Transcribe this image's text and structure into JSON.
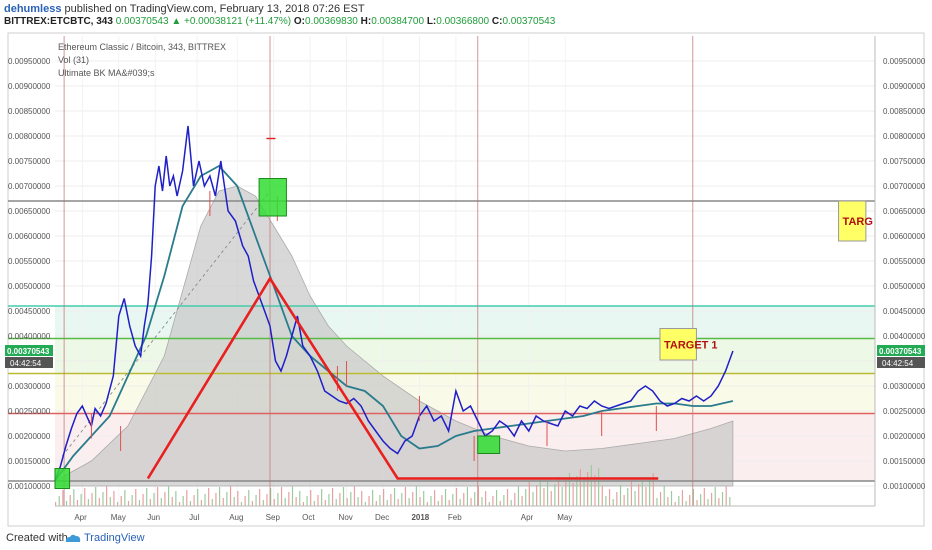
{
  "header": {
    "author": "dehumless",
    "published": "published on TradingView.com, February 13, 2018 07:26 EST",
    "symbol": "BITTREX:ETCBTC, 343",
    "last": "0.00370543",
    "change": "+0.00038121 (+11.47%)",
    "ohlc": [
      {
        "label": "O:",
        "value": "0.00369830"
      },
      {
        "label": "H:",
        "value": "0.00384700"
      },
      {
        "label": "L:",
        "value": "0.00366800"
      },
      {
        "label": "C:",
        "value": "0.00370543"
      }
    ]
  },
  "footer": {
    "created": "Created with",
    "brand": "TradingView"
  },
  "colors": {
    "price": "#1f1fc8",
    "ma": "#2a7b8c",
    "pattern": "#e82020",
    "green_box": "#33dd33",
    "target_box": "#ffff66",
    "target_text": "#b01010",
    "last_badge": "#22aa55"
  },
  "chart_data": {
    "type": "line",
    "title": "Ethereum Classic / Bitcoin, 343, BITTREX",
    "legend": [
      "Vol (31)",
      "Ultimate BK MA&#039;s"
    ],
    "x_ticks": [
      "Apr",
      "May",
      "Jun",
      "Jul",
      "Aug",
      "Sep",
      "Oct",
      "Nov",
      "Dec",
      "2018",
      "Feb",
      "Apr",
      "May"
    ],
    "y_ticks": [
      "0.00950000",
      "0.00900000",
      "0.00850000",
      "0.00800000",
      "0.00750000",
      "0.00700000",
      "0.00650000",
      "0.00600000",
      "0.00550000",
      "0.00500000",
      "0.00450000",
      "0.00400000",
      "0.00350000",
      "0.00300000",
      "0.00250000",
      "0.00200000",
      "0.00150000",
      "0.00100000"
    ],
    "ylim": [
      0.0006,
      0.01
    ],
    "grid": true,
    "last_price_label": "0.00370543",
    "countdown_label": "04:42:54",
    "series": [
      {
        "name": "price",
        "x": [
          0,
          3,
          6,
          9,
          12,
          15,
          18,
          20,
          22,
          25,
          28,
          32,
          35,
          38,
          41,
          44,
          47,
          49,
          51,
          53,
          55,
          57,
          59,
          61,
          63,
          65,
          67,
          70,
          73,
          76,
          79,
          82,
          85,
          88,
          91,
          95,
          99,
          103,
          106,
          109,
          112,
          115,
          118,
          121,
          124,
          127,
          130,
          133,
          136,
          140,
          144,
          148,
          152,
          156,
          160,
          164,
          168,
          172,
          176,
          180,
          184,
          188,
          192,
          196,
          200,
          204,
          208,
          212,
          216,
          220,
          224,
          228,
          232,
          236,
          240,
          244,
          248,
          252,
          256,
          260,
          264,
          268,
          272,
          276,
          280,
          284,
          288,
          292,
          296,
          300,
          304,
          308,
          312,
          316,
          320,
          324,
          328,
          332,
          336,
          340,
          344,
          348,
          352,
          356,
          360,
          364,
          368,
          372
        ],
        "y": [
          0.0011,
          0.0014,
          0.0018,
          0.00215,
          0.00245,
          0.0026,
          0.00235,
          0.0022,
          0.00255,
          0.0024,
          0.00265,
          0.0032,
          0.0044,
          0.00475,
          0.0042,
          0.0038,
          0.0036,
          0.0042,
          0.00465,
          0.0056,
          0.007,
          0.0074,
          0.0069,
          0.0076,
          0.007,
          0.0072,
          0.0068,
          0.0073,
          0.0082,
          0.007,
          0.0075,
          0.007,
          0.0072,
          0.0068,
          0.0075,
          0.0065,
          0.0063,
          0.0058,
          0.0056,
          0.0051,
          0.0048,
          0.0045,
          0.0042,
          0.0035,
          0.0033,
          0.0036,
          0.004,
          0.0044,
          0.0038,
          0.0036,
          0.0033,
          0.0029,
          0.0028,
          0.0027,
          0.00265,
          0.00275,
          0.0026,
          0.0023,
          0.0021,
          0.0019,
          0.00175,
          0.00165,
          0.0019,
          0.002,
          0.0024,
          0.0026,
          0.0023,
          0.0024,
          0.0021,
          0.0029,
          0.0025,
          0.0026,
          0.0023,
          0.002,
          0.0021,
          0.0023,
          0.0022,
          0.002,
          0.0023,
          0.0021,
          0.0024,
          0.0023,
          0.00225,
          0.0022,
          0.0025,
          0.0024,
          0.0026,
          0.00255,
          0.0027,
          0.0026,
          0.00255,
          0.0026,
          0.00265,
          0.0027,
          0.0029,
          0.003,
          0.0029,
          0.0027,
          0.0026,
          0.00265,
          0.00275,
          0.0027,
          0.0028,
          0.0027,
          0.0028,
          0.003,
          0.0033,
          0.0037
        ]
      },
      {
        "name": "ma",
        "x": [
          0,
          10,
          20,
          30,
          40,
          50,
          60,
          70,
          80,
          90,
          100,
          110,
          120,
          130,
          140,
          150,
          160,
          170,
          180,
          190,
          200,
          210,
          220,
          230,
          240,
          250,
          260,
          270,
          280,
          290,
          300,
          310,
          320,
          330,
          340,
          350,
          360,
          372
        ],
        "y": [
          0.0011,
          0.0016,
          0.002,
          0.0024,
          0.0032,
          0.004,
          0.0052,
          0.0066,
          0.0072,
          0.0074,
          0.007,
          0.006,
          0.005,
          0.004,
          0.0036,
          0.0033,
          0.003,
          0.0029,
          0.0026,
          0.002,
          0.00175,
          0.0018,
          0.002,
          0.0021,
          0.00215,
          0.0022,
          0.00225,
          0.0023,
          0.00235,
          0.0024,
          0.0025,
          0.00255,
          0.0026,
          0.00265,
          0.00265,
          0.0026,
          0.0026,
          0.0027
        ]
      },
      {
        "name": "volume_area",
        "x": [
          0,
          20,
          40,
          60,
          80,
          90,
          100,
          110,
          120,
          130,
          140,
          150,
          160,
          170,
          180,
          200,
          220,
          240,
          260,
          280,
          300,
          320,
          340,
          360,
          372
        ],
        "y": [
          0.0011,
          0.0015,
          0.0022,
          0.0036,
          0.0062,
          0.0069,
          0.007,
          0.0068,
          0.0062,
          0.0056,
          0.0048,
          0.0042,
          0.0038,
          0.0035,
          0.0032,
          0.0027,
          0.0023,
          0.002,
          0.0018,
          0.0017,
          0.00175,
          0.00185,
          0.00195,
          0.00215,
          0.0023
        ]
      }
    ],
    "horizontal_levels": [
      {
        "y": 0.0067,
        "color": "#888888"
      },
      {
        "y": 0.0046,
        "color": "#44ccaa"
      },
      {
        "y": 0.00395,
        "color": "#55bb44"
      },
      {
        "y": 0.00325,
        "color": "#bbbb33"
      },
      {
        "y": 0.00245,
        "color": "#e06060"
      },
      {
        "y": 0.0011,
        "color": "#888888"
      }
    ],
    "vertical_markers": [
      5,
      118,
      232,
      350
    ],
    "triangle": {
      "x": [
        51,
        118,
        188,
        331
      ],
      "y": [
        0.00115,
        0.00515,
        0.00115,
        0.00115
      ]
    },
    "targets": [
      {
        "label": "TARGET 1",
        "x_start": 332,
        "x_end": 352,
        "y_low": 0.00352,
        "y_high": 0.00415
      },
      {
        "label": "TARG",
        "x_start": 430,
        "x_end": 445,
        "y_low": 0.0059,
        "y_high": 0.0067
      }
    ],
    "green_boxes": [
      {
        "x_start": 0,
        "x_end": 8,
        "y_low": 0.00095,
        "y_high": 0.00135
      },
      {
        "x_start": 112,
        "x_end": 127,
        "y_low": 0.0064,
        "y_high": 0.00715
      },
      {
        "x_start": 232,
        "x_end": 244,
        "y_low": 0.00165,
        "y_high": 0.002
      }
    ]
  }
}
